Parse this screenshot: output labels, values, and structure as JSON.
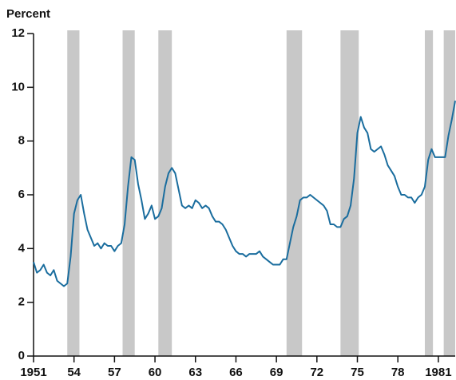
{
  "chart_data": {
    "type": "line",
    "y_label": "Percent",
    "x": [
      1951,
      1951.25,
      1951.5,
      1951.75,
      1952,
      1952.25,
      1952.5,
      1952.75,
      1953,
      1953.25,
      1953.5,
      1953.75,
      1954,
      1954.25,
      1954.5,
      1954.75,
      1955,
      1955.25,
      1955.5,
      1955.75,
      1956,
      1956.25,
      1956.5,
      1956.75,
      1957,
      1957.25,
      1957.5,
      1957.75,
      1958,
      1958.25,
      1958.5,
      1958.75,
      1959,
      1959.25,
      1959.5,
      1959.75,
      1960,
      1960.25,
      1960.5,
      1960.75,
      1961,
      1961.25,
      1961.5,
      1961.75,
      1962,
      1962.25,
      1962.5,
      1962.75,
      1963,
      1963.25,
      1963.5,
      1963.75,
      1964,
      1964.25,
      1964.5,
      1964.75,
      1965,
      1965.25,
      1965.5,
      1965.75,
      1966,
      1966.25,
      1966.5,
      1966.75,
      1967,
      1967.25,
      1967.5,
      1967.75,
      1968,
      1968.25,
      1968.5,
      1968.75,
      1969,
      1969.25,
      1969.5,
      1969.75,
      1970,
      1970.25,
      1970.5,
      1970.75,
      1971,
      1971.25,
      1971.5,
      1971.75,
      1972,
      1972.25,
      1972.5,
      1972.75,
      1973,
      1973.25,
      1973.5,
      1973.75,
      1974,
      1974.25,
      1974.5,
      1974.75,
      1975,
      1975.25,
      1975.5,
      1975.75,
      1976,
      1976.25,
      1976.5,
      1976.75,
      1977,
      1977.25,
      1977.5,
      1977.75,
      1978,
      1978.25,
      1978.5,
      1978.75,
      1979,
      1979.25,
      1979.5,
      1979.75,
      1980,
      1980.25,
      1980.5,
      1980.75,
      1981,
      1981.25,
      1981.5,
      1981.75,
      1982,
      1982.25
    ],
    "series": [
      {
        "color": "#1a6d9e",
        "values": [
          3.5,
          3.1,
          3.2,
          3.4,
          3.1,
          3.0,
          3.2,
          2.8,
          2.7,
          2.6,
          2.7,
          3.7,
          5.3,
          5.8,
          6.0,
          5.3,
          4.7,
          4.4,
          4.1,
          4.2,
          4.0,
          4.2,
          4.1,
          4.1,
          3.9,
          4.1,
          4.2,
          4.9,
          6.3,
          7.4,
          7.3,
          6.4,
          5.8,
          5.1,
          5.3,
          5.6,
          5.1,
          5.2,
          5.5,
          6.3,
          6.8,
          7.0,
          6.8,
          6.2,
          5.6,
          5.5,
          5.6,
          5.5,
          5.8,
          5.7,
          5.5,
          5.6,
          5.5,
          5.2,
          5.0,
          5.0,
          4.9,
          4.7,
          4.4,
          4.1,
          3.9,
          3.8,
          3.8,
          3.7,
          3.8,
          3.8,
          3.8,
          3.9,
          3.7,
          3.6,
          3.5,
          3.4,
          3.4,
          3.4,
          3.6,
          3.6,
          4.2,
          4.8,
          5.2,
          5.8,
          5.9,
          5.9,
          6.0,
          5.9,
          5.8,
          5.7,
          5.6,
          5.4,
          4.9,
          4.9,
          4.8,
          4.8,
          5.1,
          5.2,
          5.6,
          6.6,
          8.3,
          8.9,
          8.5,
          8.3,
          7.7,
          7.6,
          7.7,
          7.8,
          7.5,
          7.1,
          6.9,
          6.7,
          6.3,
          6.0,
          6.0,
          5.9,
          5.9,
          5.7,
          5.9,
          6.0,
          6.3,
          7.3,
          7.7,
          7.4,
          7.4,
          7.4,
          7.4,
          8.2,
          8.8,
          9.5
        ]
      }
    ],
    "recessions": [
      [
        1953.5,
        1954.4
      ],
      [
        1957.6,
        1958.5
      ],
      [
        1960.25,
        1961.25
      ],
      [
        1969.75,
        1970.9
      ],
      [
        1973.75,
        1975.1
      ],
      [
        1980.0,
        1980.6
      ],
      [
        1981.4,
        1982.25
      ]
    ],
    "recession_color": "#c8c8c8",
    "xlim": [
      1951,
      1982.25
    ],
    "ylim": [
      0,
      12
    ],
    "xticks": [
      1951,
      {
        "value": 1954,
        "label": "54"
      },
      {
        "value": 1957,
        "label": "57"
      },
      {
        "value": 1960,
        "label": "60"
      },
      {
        "value": 1963,
        "label": "63"
      },
      {
        "value": 1966,
        "label": "66"
      },
      {
        "value": 1969,
        "label": "69"
      },
      {
        "value": 1972,
        "label": "72"
      },
      {
        "value": 1975,
        "label": "75"
      },
      {
        "value": 1978,
        "label": "78"
      },
      1981
    ],
    "yticks": [
      0,
      2,
      4,
      6,
      8,
      10,
      12
    ]
  }
}
